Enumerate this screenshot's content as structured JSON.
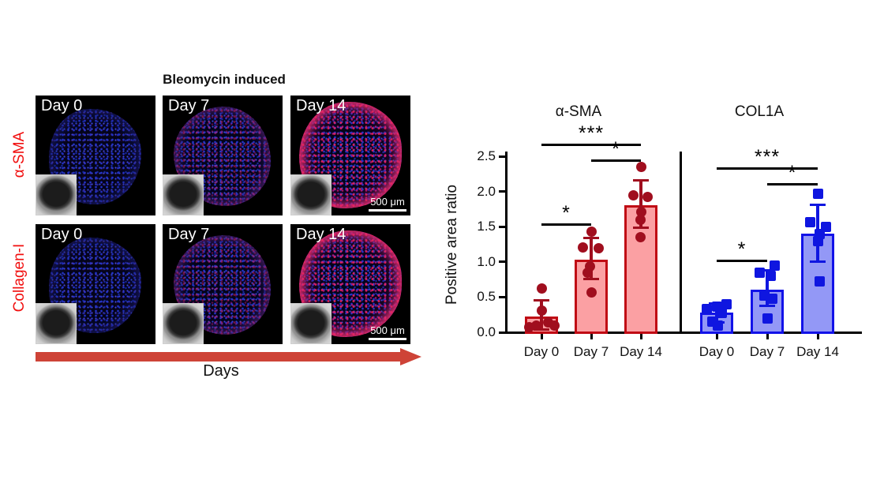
{
  "left_panel": {
    "title": "Bleomycin induced",
    "timeline_label": "Days",
    "rows": [
      {
        "label": "α-SMA",
        "cells": [
          {
            "day": "Day 0"
          },
          {
            "day": "Day 7"
          },
          {
            "day": "Day 14",
            "scale_bar": "500 μm"
          }
        ]
      },
      {
        "label": "Collagen-I",
        "cells": [
          {
            "day": "Day 0"
          },
          {
            "day": "Day 7"
          },
          {
            "day": "Day 14",
            "scale_bar": "500 μm"
          }
        ]
      }
    ],
    "colors": {
      "arrow": "#ce4337",
      "row_label": "#f10f0f",
      "nuclei_stain": "#2433cc",
      "marker_stain": "#f4225c"
    }
  },
  "chart_data": {
    "type": "bar",
    "ylabel": "Positive area ratio",
    "ylim": [
      0,
      2.5
    ],
    "yticks": [
      0,
      0.5,
      1,
      1.5,
      2,
      2.5
    ],
    "grid": false,
    "categories": [
      "Day 0",
      "Day 7",
      "Day 14"
    ],
    "panels": [
      {
        "key": "alpha-sma",
        "title": "α-SMA",
        "marker": "circle",
        "colors": {
          "fill": "#fba0a3",
          "edge": "#c00a14",
          "point": "#a00e1e"
        },
        "means": [
          0.22,
          1.03,
          1.8
        ],
        "sd_low": [
          0.04,
          0.76,
          1.49
        ],
        "sd_high": [
          0.45,
          1.34,
          2.16
        ],
        "points": [
          [
            0.62,
            0.31,
            0.14,
            0.09,
            0.09,
            0.07
          ],
          [
            1.43,
            1.21,
            1.19,
            0.94,
            0.85,
            0.57
          ],
          [
            2.35,
            1.95,
            1.92,
            1.71,
            1.6,
            1.35
          ]
        ],
        "point_offsets": [
          [
            0,
            0,
            8,
            -7,
            16,
            -16
          ],
          [
            0,
            -11,
            9,
            -2,
            -5,
            0
          ],
          [
            0,
            -10,
            8,
            0,
            -1,
            -1
          ]
        ],
        "significance": [
          {
            "a": 0,
            "b": 1,
            "label": "*",
            "y": 1.55
          },
          {
            "a": 0,
            "b": 2,
            "label": "***",
            "y": 2.68
          },
          {
            "a": 1,
            "b": 2,
            "label": "*",
            "y": 2.45
          }
        ]
      },
      {
        "key": "col1a",
        "title": "COL1A",
        "marker": "square",
        "colors": {
          "fill": "#9398f6",
          "edge": "#1212e8",
          "point": "#0f16e0"
        },
        "means": [
          0.28,
          0.61,
          1.4
        ],
        "sd_low": [
          0.14,
          0.37,
          1.0
        ],
        "sd_high": [
          0.41,
          0.88,
          1.81
        ],
        "points": [
          [
            0.4,
            0.36,
            0.33,
            0.28,
            0.15,
            0.1
          ],
          [
            0.95,
            0.85,
            0.8,
            0.52,
            0.48,
            0.2
          ],
          [
            1.97,
            1.56,
            1.5,
            1.4,
            1.3,
            0.72
          ]
        ],
        "point_offsets": [
          [
            12,
            0,
            -13,
            6,
            -6,
            1
          ],
          [
            9,
            -10,
            4,
            -4,
            6,
            0
          ],
          [
            0,
            -10,
            10,
            2,
            0,
            2
          ]
        ],
        "significance": [
          {
            "a": 0,
            "b": 1,
            "label": "*",
            "y": 1.03
          },
          {
            "a": 0,
            "b": 2,
            "label": "***",
            "y": 2.34
          },
          {
            "a": 1,
            "b": 2,
            "label": "*",
            "y": 2.12
          }
        ]
      }
    ]
  }
}
